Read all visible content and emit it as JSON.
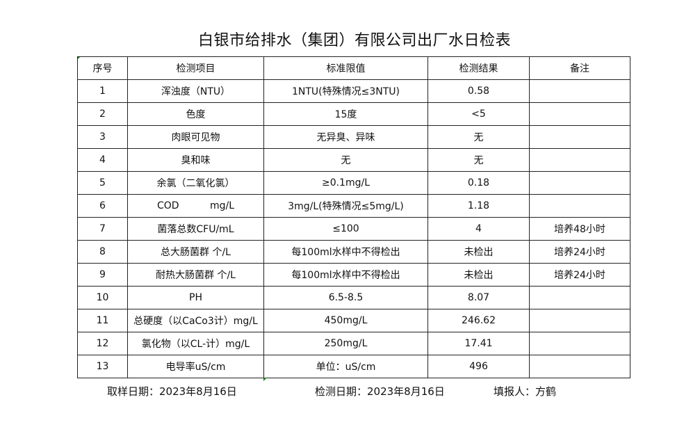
{
  "title": "白银市给排水（集团）有限公司出厂水日检表",
  "headers": [
    "序号",
    "检测项目",
    "标准限值",
    "检测结果",
    "备注"
  ],
  "rows": [
    [
      "1",
      "浑浊度（NTU）",
      "1NTU(特殊情况≤3NTU)",
      "0.58",
      ""
    ],
    [
      "2",
      "色度",
      "15度",
      "<5",
      ""
    ],
    [
      "3",
      "肉眼可见物",
      "无异臭、异味",
      "无",
      ""
    ],
    [
      "4",
      "臭和味",
      "无",
      "无",
      ""
    ],
    [
      "5",
      "余氯（二氧化氯）",
      "≥0.1mg/L",
      "0.18",
      ""
    ],
    [
      "6",
      "COD          mg/L",
      "3mg/L(特殊情况≤5mg/L)",
      "1.18",
      ""
    ],
    [
      "7",
      "菌落总数CFU/mL",
      "≤100",
      "4",
      "培养48小时"
    ],
    [
      "8",
      "总大肠菌群 个/L",
      "每100ml水样中不得检出",
      "未检出",
      "培养24小时"
    ],
    [
      "9",
      "耐热大肠菌群 个/L",
      "每100ml水样中不得检出",
      "未检出",
      "培养24小时"
    ],
    [
      "10",
      "PH",
      "6.5-8.5",
      "8.07",
      ""
    ],
    [
      "11",
      "总硬度（以CaCo3计）mg/L",
      "450mg/L",
      "246.62",
      ""
    ],
    [
      "12",
      "氯化物（以CL-计）mg/L",
      "250mg/L",
      "17.41",
      ""
    ],
    [
      "13",
      "电导率uS/cm",
      "单位：uS/cm",
      "496",
      ""
    ]
  ],
  "footer": {
    "sample_date": "取样日期：2023年8月16日",
    "test_date": "检测日期：2023年8月16日",
    "reporter": "填报人：方鹤"
  }
}
